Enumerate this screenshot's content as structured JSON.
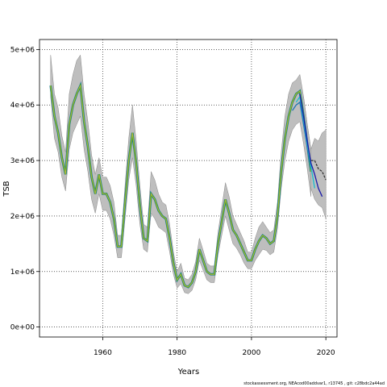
{
  "chart_data": {
    "type": "line",
    "xlabel": "Years",
    "ylabel": "TSB",
    "xlim": [
      1943,
      2023
    ],
    "ylim": [
      -180000,
      5180000
    ],
    "x_ticks": [
      1960,
      1980,
      2000,
      2020
    ],
    "x_tick_labels": [
      "1960",
      "1980",
      "2000",
      "2020"
    ],
    "y_ticks": [
      0,
      1000000,
      2000000,
      3000000,
      4000000,
      5000000
    ],
    "y_tick_labels": [
      "0e+00",
      "1e+06",
      "2e+06",
      "3e+06",
      "4e+06",
      "5e+06"
    ],
    "grid": "dotted",
    "band_color": "#bebebe",
    "colors": {
      "green": "#2ca02c",
      "olive": "#b5b53c",
      "blue_main": "#1f77b4",
      "teal": "#17becf",
      "navy": "#1a1aaa",
      "black": "#333333"
    },
    "x": [
      1946,
      1947,
      1948,
      1949,
      1950,
      1951,
      1952,
      1953,
      1954,
      1955,
      1956,
      1957,
      1958,
      1959,
      1960,
      1961,
      1962,
      1963,
      1964,
      1965,
      1966,
      1967,
      1968,
      1969,
      1970,
      1971,
      1972,
      1973,
      1974,
      1975,
      1976,
      1977,
      1978,
      1979,
      1980,
      1981,
      1982,
      1983,
      1984,
      1985,
      1986,
      1987,
      1988,
      1989,
      1990,
      1991,
      1992,
      1993,
      1994,
      1995,
      1996,
      1997,
      1998,
      1999,
      2000,
      2001,
      2002,
      2003,
      2004,
      2005,
      2006,
      2007,
      2008,
      2009,
      2010,
      2011,
      2012,
      2013,
      2014,
      2015,
      2016
    ],
    "tsb": [
      4350000,
      3800000,
      3500000,
      3050000,
      2750000,
      3650000,
      4000000,
      4200000,
      4350000,
      3700000,
      3250000,
      2700000,
      2400000,
      2750000,
      2400000,
      2400000,
      2250000,
      1950000,
      1450000,
      1450000,
      2250000,
      3000000,
      3500000,
      2950000,
      2200000,
      1600000,
      1550000,
      2400000,
      2300000,
      2100000,
      2000000,
      1950000,
      1600000,
      1150000,
      850000,
      950000,
      750000,
      720000,
      800000,
      1000000,
      1400000,
      1200000,
      1000000,
      950000,
      950000,
      1500000,
      1900000,
      2300000,
      2050000,
      1750000,
      1650000,
      1500000,
      1350000,
      1200000,
      1200000,
      1400000,
      1550000,
      1650000,
      1600000,
      1500000,
      1550000,
      2000000,
      2800000,
      3400000,
      3800000,
      4050000,
      4200000,
      4250000,
      3800000,
      3300000,
      2800000
    ],
    "band_upper": [
      4900000,
      4200000,
      3950000,
      3450000,
      3150000,
      4200000,
      4550000,
      4800000,
      4900000,
      4200000,
      3700000,
      3100000,
      2750000,
      3050000,
      2700000,
      2700000,
      2550000,
      2250000,
      1650000,
      1650000,
      2550000,
      3400000,
      4000000,
      3350000,
      2550000,
      1850000,
      1800000,
      2800000,
      2650000,
      2400000,
      2250000,
      2200000,
      1850000,
      1350000,
      1000000,
      1150000,
      880000,
      850000,
      950000,
      1180000,
      1600000,
      1380000,
      1150000,
      1100000,
      1100000,
      1700000,
      2150000,
      2600000,
      2350000,
      2000000,
      1850000,
      1700000,
      1550000,
      1350000,
      1350000,
      1600000,
      1800000,
      1900000,
      1800000,
      1700000,
      1750000,
      2250000,
      3150000,
      3800000,
      4200000,
      4400000,
      4450000,
      4550000,
      4150000,
      3650000,
      3200000
    ],
    "band_lower": [
      4150000,
      3400000,
      3150000,
      2700000,
      2450000,
      3200000,
      3500000,
      3650000,
      3800000,
      3200000,
      2800000,
      2300000,
      2050000,
      2400000,
      2100000,
      2100000,
      1950000,
      1650000,
      1250000,
      1250000,
      1950000,
      2650000,
      3050000,
      2550000,
      1850000,
      1400000,
      1350000,
      2050000,
      1950000,
      1800000,
      1750000,
      1700000,
      1350000,
      950000,
      700000,
      780000,
      620000,
      600000,
      660000,
      850000,
      1200000,
      1020000,
      850000,
      800000,
      800000,
      1300000,
      1650000,
      2000000,
      1750000,
      1500000,
      1420000,
      1300000,
      1150000,
      1050000,
      1050000,
      1200000,
      1300000,
      1400000,
      1380000,
      1300000,
      1350000,
      1780000,
      2500000,
      3000000,
      3350000,
      3550000,
      3650000,
      3700000,
      3300000,
      2850000,
      2350000
    ],
    "retro_x": [
      2014,
      2015,
      2016,
      2017,
      2018,
      2019,
      2020
    ],
    "retro_upper": [
      4150000,
      3650000,
      3200000,
      3400000,
      3350000,
      3500000,
      3550000
    ],
    "retro_lower": [
      3500000,
      3000000,
      2500000,
      2300000,
      2200000,
      2150000,
      1950000
    ],
    "retro_series": [
      {
        "color_key": "blue_main",
        "x": [
          2011,
          2012,
          2013,
          2014,
          2015,
          2016
        ],
        "values": [
          3900000,
          4000000,
          4050000,
          3650000,
          3250000,
          2850000
        ]
      },
      {
        "color_key": "teal",
        "x": [
          2012,
          2013,
          2014,
          2015,
          2016,
          2017
        ],
        "values": [
          4050000,
          4150000,
          3750000,
          3300000,
          2900000,
          2500000
        ]
      },
      {
        "color_key": "navy",
        "x": [
          2013,
          2014,
          2015,
          2016,
          2017,
          2018,
          2019
        ],
        "values": [
          4200000,
          3800000,
          3350000,
          2950000,
          2750000,
          2500000,
          2350000
        ]
      },
      {
        "color_key": "black",
        "x": [
          2016,
          2017,
          2018,
          2019,
          2020
        ],
        "values": [
          3000000,
          3000000,
          2850000,
          2800000,
          2650000
        ]
      }
    ]
  },
  "footer_text": "stockassessment.org, NEAcod00addvar1, r13745 ,  git: c28bdc2a44ad"
}
